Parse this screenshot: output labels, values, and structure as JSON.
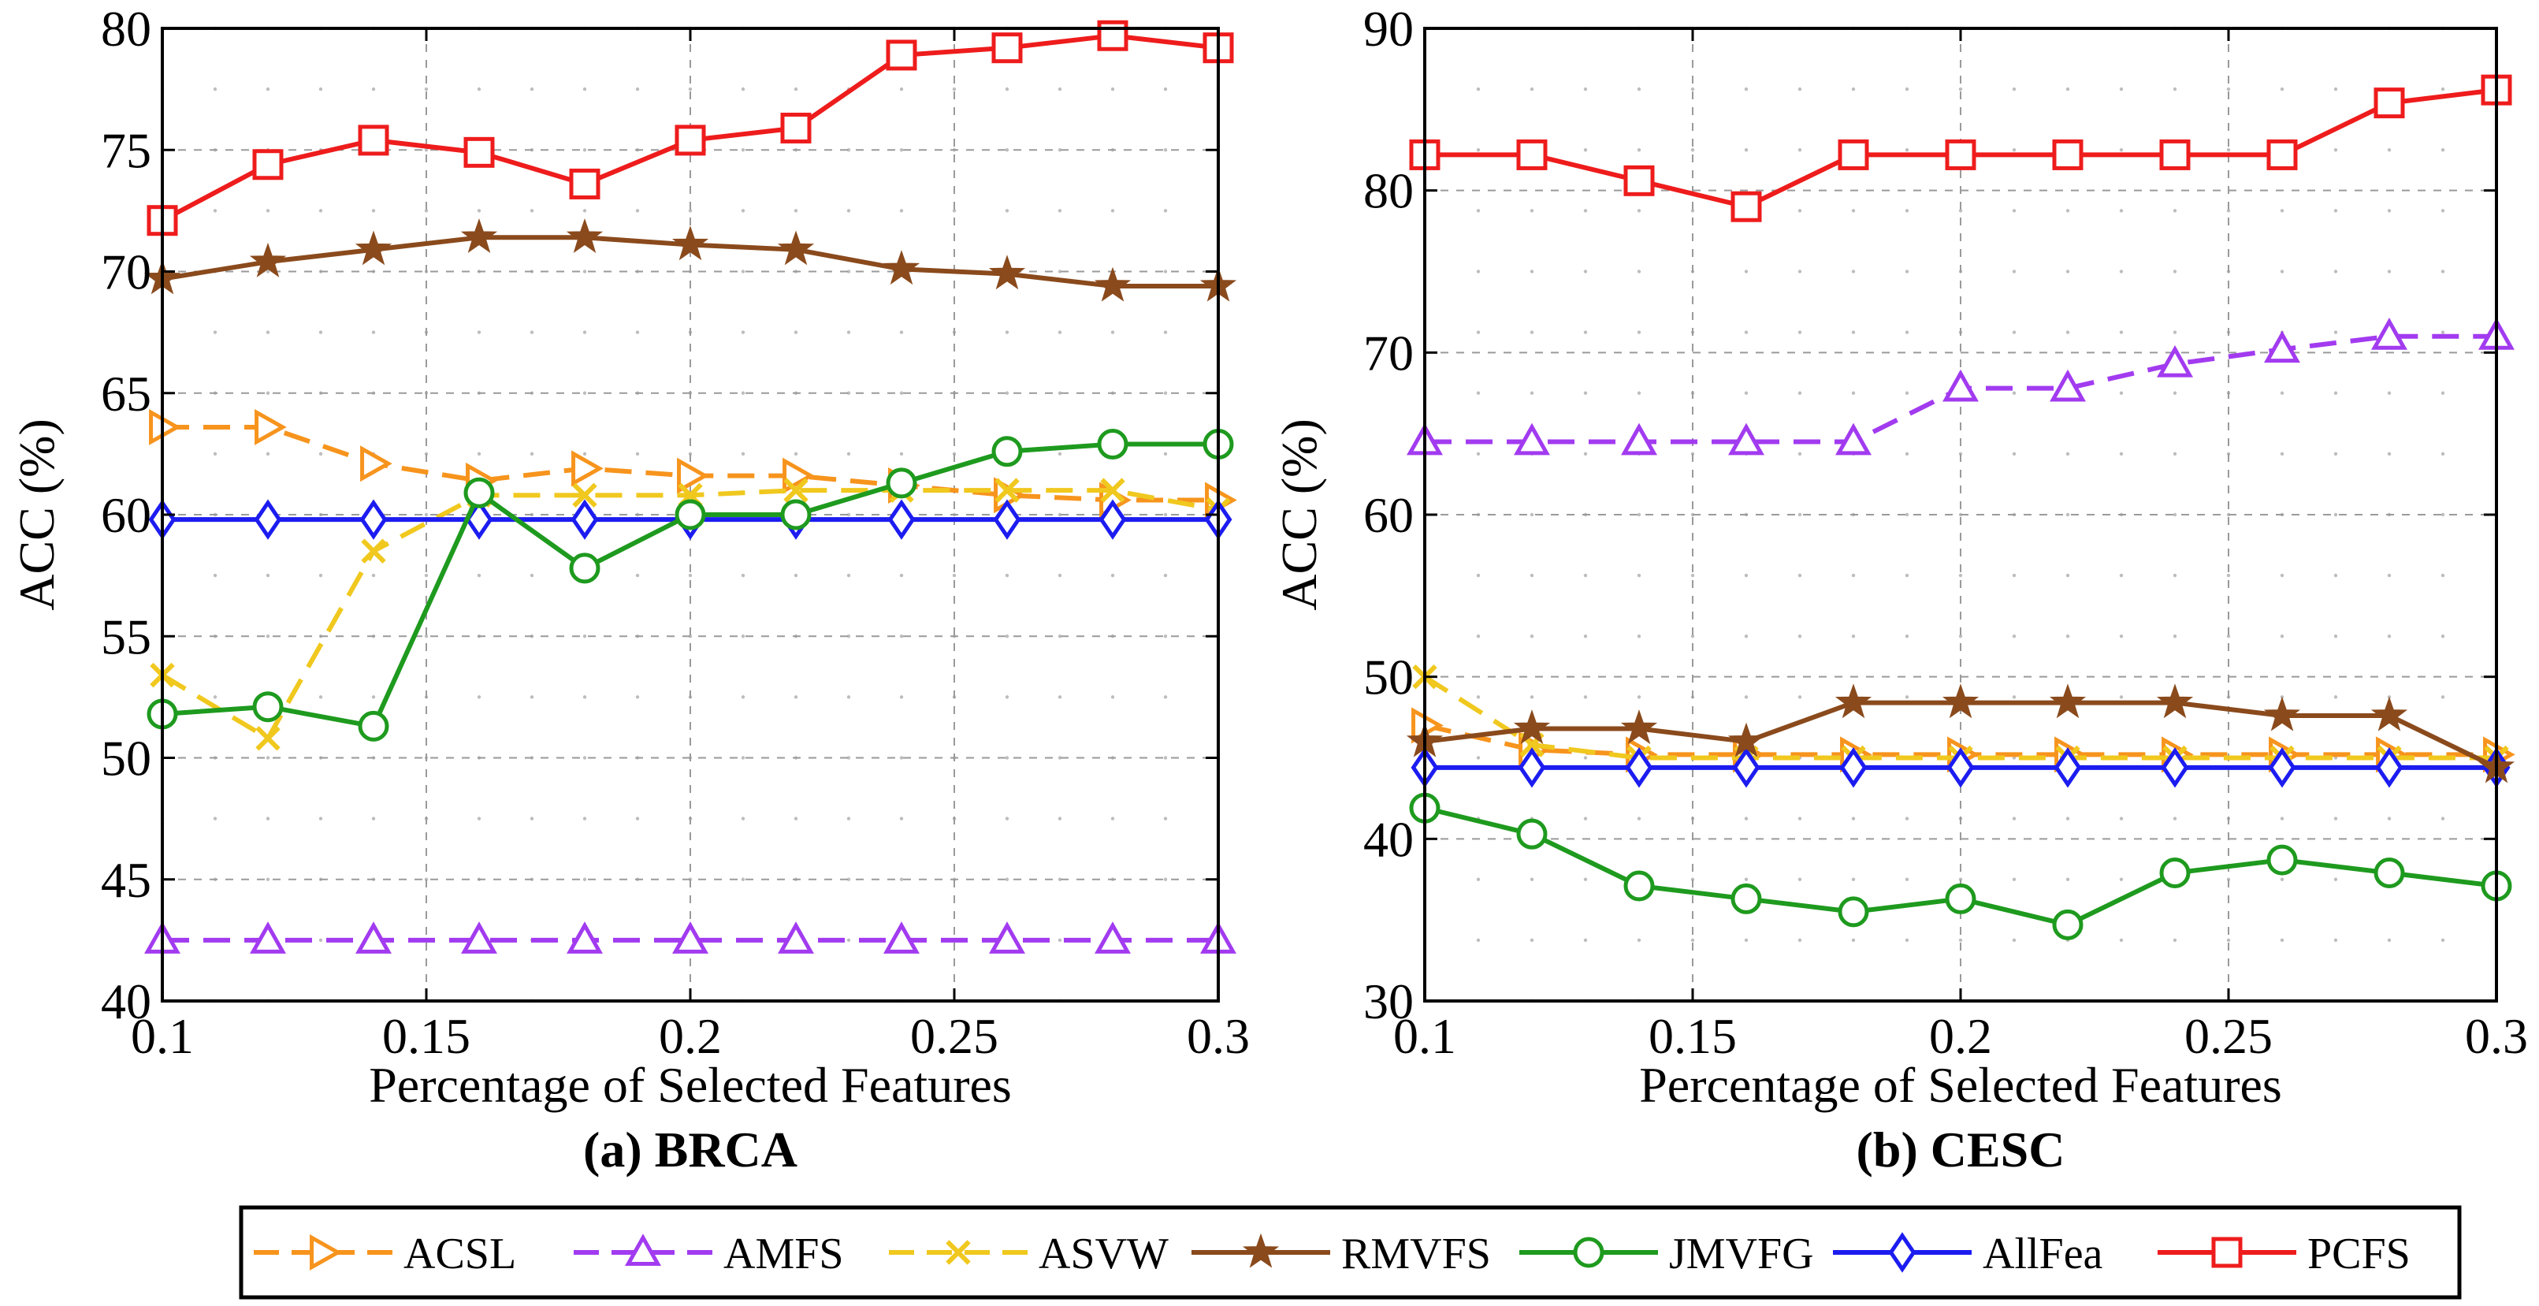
{
  "legend": [
    {
      "name": "ACSL",
      "color": "#f7941d",
      "dash": "dashed",
      "marker": "triangle-right"
    },
    {
      "name": "AMFS",
      "color": "#a23bf0",
      "dash": "dashed",
      "marker": "triangle-up"
    },
    {
      "name": "ASVW",
      "color": "#f0c81e",
      "dash": "dashed",
      "marker": "x"
    },
    {
      "name": "RMVFS",
      "color": "#8a4a1c",
      "dash": "solid",
      "marker": "star"
    },
    {
      "name": "JMVFG",
      "color": "#1e9a1e",
      "dash": "solid",
      "marker": "circle"
    },
    {
      "name": "AllFea",
      "color": "#1c1cf0",
      "dash": "solid",
      "marker": "diamond"
    },
    {
      "name": "PCFS",
      "color": "#ee1c1c",
      "dash": "solid",
      "marker": "square"
    }
  ],
  "chart_data": [
    {
      "type": "line",
      "caption": "(a) BRCA",
      "xlabel": "Percentage of Selected Features",
      "ylabel": "ACC (%)",
      "xlim": [
        0.1,
        0.3
      ],
      "ylim": [
        40,
        80
      ],
      "xticks": [
        0.1,
        0.15,
        0.2,
        0.25,
        0.3
      ],
      "xtick_labels": [
        "0.1",
        "0.15",
        "0.2",
        "0.25",
        "0.3"
      ],
      "yticks": [
        40,
        45,
        50,
        55,
        60,
        65,
        70,
        75,
        80
      ],
      "ytick_labels": [
        "40",
        "45",
        "50",
        "55",
        "60",
        "65",
        "70",
        "75",
        "80"
      ],
      "grid": true,
      "x": [
        0.1,
        0.12,
        0.14,
        0.16,
        0.18,
        0.2,
        0.22,
        0.24,
        0.26,
        0.28,
        0.3
      ],
      "series": [
        {
          "name": "ACSL",
          "values": [
            63.6,
            63.6,
            62.1,
            61.4,
            61.9,
            61.6,
            61.6,
            61.2,
            60.8,
            60.6,
            60.6
          ]
        },
        {
          "name": "AMFS",
          "values": [
            42.5,
            42.5,
            42.5,
            42.5,
            42.5,
            42.5,
            42.5,
            42.5,
            42.5,
            42.5,
            42.5
          ]
        },
        {
          "name": "ASVW",
          "values": [
            53.4,
            50.8,
            58.5,
            60.8,
            60.8,
            60.8,
            61.0,
            61.0,
            61.0,
            61.0,
            60.2
          ]
        },
        {
          "name": "RMVFS",
          "values": [
            69.7,
            70.4,
            70.9,
            71.4,
            71.4,
            71.1,
            70.9,
            70.1,
            69.9,
            69.4,
            69.4
          ]
        },
        {
          "name": "JMVFG",
          "values": [
            51.8,
            52.1,
            51.3,
            60.9,
            57.8,
            60.0,
            60.0,
            61.3,
            62.6,
            62.9,
            62.9
          ]
        },
        {
          "name": "AllFea",
          "values": [
            59.8,
            59.8,
            59.8,
            59.8,
            59.8,
            59.8,
            59.8,
            59.8,
            59.8,
            59.8,
            59.8
          ]
        },
        {
          "name": "PCFS",
          "values": [
            72.1,
            74.4,
            75.4,
            74.9,
            73.6,
            75.4,
            75.9,
            78.9,
            79.2,
            79.7,
            79.2
          ]
        }
      ]
    },
    {
      "type": "line",
      "caption": "(b) CESC",
      "xlabel": "Percentage of Selected Features",
      "ylabel": "ACC (%)",
      "xlim": [
        0.1,
        0.3
      ],
      "ylim": [
        30,
        90
      ],
      "xticks": [
        0.1,
        0.15,
        0.2,
        0.25,
        0.3
      ],
      "xtick_labels": [
        "0.1",
        "0.15",
        "0.2",
        "0.25",
        "0.3"
      ],
      "yticks": [
        30,
        40,
        50,
        60,
        70,
        80,
        90
      ],
      "ytick_labels": [
        "30",
        "40",
        "50",
        "60",
        "70",
        "80",
        "90"
      ],
      "grid": true,
      "x": [
        0.1,
        0.12,
        0.14,
        0.16,
        0.18,
        0.2,
        0.22,
        0.24,
        0.26,
        0.28,
        0.3
      ],
      "series": [
        {
          "name": "ACSL",
          "values": [
            47.0,
            45.5,
            45.2,
            45.2,
            45.2,
            45.2,
            45.2,
            45.2,
            45.2,
            45.2,
            45.2
          ]
        },
        {
          "name": "AMFS",
          "values": [
            64.5,
            64.5,
            64.5,
            64.5,
            64.5,
            67.8,
            67.8,
            69.3,
            70.2,
            71.0,
            71.0
          ]
        },
        {
          "name": "ASVW",
          "values": [
            50.0,
            45.8,
            45.0,
            45.0,
            45.0,
            45.0,
            45.0,
            45.0,
            45.0,
            45.0,
            45.0
          ]
        },
        {
          "name": "RMVFS",
          "values": [
            46.0,
            46.8,
            46.8,
            46.0,
            48.4,
            48.4,
            48.4,
            48.4,
            47.6,
            47.6,
            44.4
          ]
        },
        {
          "name": "JMVFG",
          "values": [
            41.9,
            40.3,
            37.1,
            36.3,
            35.5,
            36.3,
            34.7,
            37.9,
            38.7,
            37.9,
            37.1
          ]
        },
        {
          "name": "AllFea",
          "values": [
            44.4,
            44.4,
            44.4,
            44.4,
            44.4,
            44.4,
            44.4,
            44.4,
            44.4,
            44.4,
            44.4
          ]
        },
        {
          "name": "PCFS",
          "values": [
            82.2,
            82.2,
            80.6,
            79.0,
            82.2,
            82.2,
            82.2,
            82.2,
            82.2,
            85.4,
            86.2
          ]
        }
      ]
    }
  ]
}
